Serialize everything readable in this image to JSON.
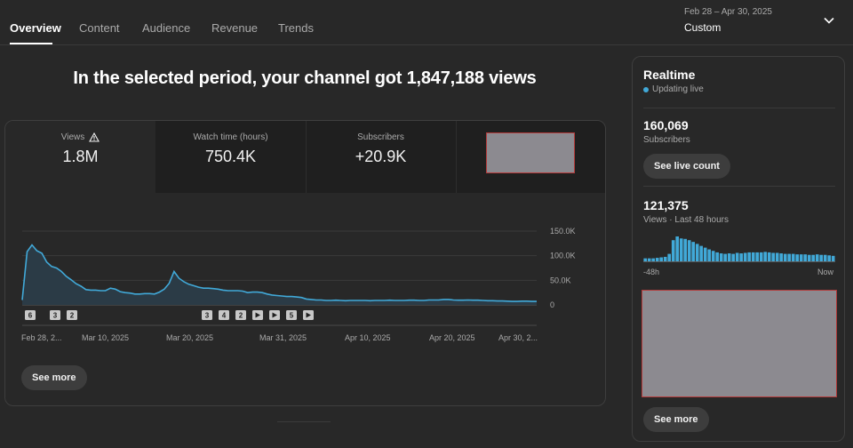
{
  "tabs": [
    "Overview",
    "Content",
    "Audience",
    "Revenue",
    "Trends"
  ],
  "date_range": {
    "range": "Feb 28 – Apr 30, 2025",
    "preset": "Custom"
  },
  "headline": "In the selected period, your channel got 1,847,188 views",
  "metrics": [
    {
      "label": "Views",
      "value": "1.8M"
    },
    {
      "label": "Watch time (hours)",
      "value": "750.4K"
    },
    {
      "label": "Subscribers",
      "value": "+20.9K"
    }
  ],
  "markers": [
    "6",
    "3",
    "2",
    "3",
    "4",
    "2",
    "5"
  ],
  "see_more_label": "See more",
  "chart_data": {
    "type": "area",
    "x_tick_labels": [
      "Feb 28, 2...",
      "Mar 10, 2025",
      "Mar 20, 2025",
      "Mar 31, 2025",
      "Apr 10, 2025",
      "Apr 20, 2025",
      "Apr 30, 2..."
    ],
    "y_tick_labels": [
      "150.0K",
      "100.0K",
      "50.0K",
      "0"
    ],
    "ylim": [
      0,
      150000
    ],
    "grid": true,
    "colors": {
      "line": "#41a9d8",
      "fill": "#2a3a45"
    },
    "values": [
      10000,
      108000,
      122000,
      110000,
      105000,
      87000,
      78000,
      75000,
      68000,
      58000,
      51000,
      43000,
      38000,
      31000,
      30000,
      30000,
      29000,
      29000,
      34000,
      32000,
      27000,
      25000,
      24000,
      22000,
      22000,
      23000,
      23000,
      22000,
      26000,
      32000,
      44000,
      68000,
      54000,
      47000,
      42000,
      39000,
      36000,
      34000,
      34000,
      33000,
      32000,
      30000,
      29000,
      29000,
      29000,
      28000,
      25000,
      26000,
      26000,
      25000,
      22000,
      20000,
      19000,
      18000,
      17000,
      17000,
      16000,
      15000,
      12000,
      11000,
      10000,
      10000,
      9000,
      9000,
      9500,
      9000,
      8500,
      9000,
      9000,
      9000,
      9000,
      8500,
      9000,
      9000,
      9000,
      9500,
      9000,
      9000,
      9000,
      9500,
      9500,
      9000,
      9000,
      10000,
      10000,
      10000,
      11000,
      11000,
      10000,
      9500,
      9500,
      10000,
      9500,
      9500,
      9000,
      8500,
      8500,
      8000,
      8000,
      7500,
      7000,
      7000,
      7500,
      7500,
      7000,
      7000
    ]
  },
  "realtime": {
    "title": "Realtime",
    "status": "Updating live",
    "subscribers_value": "160,069",
    "subscribers_label": "Subscribers",
    "see_live_count": "See live count",
    "views_value": "121,375",
    "views_label": "Views · Last 48 hours",
    "axis_start": "-48h",
    "axis_end": "Now",
    "bar_levels": [
      0.12,
      0.12,
      0.12,
      0.14,
      0.16,
      0.18,
      0.3,
      0.85,
      1.0,
      0.92,
      0.9,
      0.85,
      0.78,
      0.7,
      0.62,
      0.55,
      0.48,
      0.42,
      0.36,
      0.32,
      0.3,
      0.32,
      0.3,
      0.34,
      0.32,
      0.34,
      0.36,
      0.36,
      0.36,
      0.36,
      0.38,
      0.36,
      0.34,
      0.34,
      0.32,
      0.3,
      0.3,
      0.3,
      0.28,
      0.28,
      0.28,
      0.26,
      0.26,
      0.28,
      0.26,
      0.26,
      0.24,
      0.22
    ]
  }
}
